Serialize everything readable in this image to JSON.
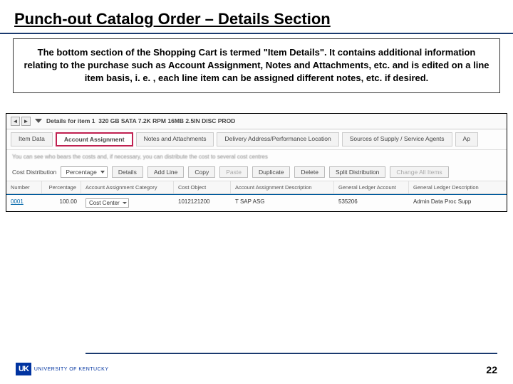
{
  "title": "Punch-out Catalog Order – Details Section",
  "description": "The bottom section of the Shopping Cart is termed \"Item Details\". It contains additional information relating to the purchase such as Account Assignment, Notes and Attachments, etc. and is edited on a line item basis, i. e. , each line item can be assigned different notes, etc. if desired.",
  "screenshot": {
    "details_label": "Details for item 1",
    "item_name": "320 GB SATA 7.2K RPM 16MB 2.5IN DISC PROD",
    "tabs": [
      "Item Data",
      "Account Assignment",
      "Notes and Attachments",
      "Delivery Address/Performance Location",
      "Sources of Supply / Service Agents",
      "Ap"
    ],
    "blur_text": "You can see who bears the costs and, if necessary, you can distribute the cost to several cost centres",
    "cost_dist_label": "Cost Distribution",
    "cost_dist_value": "Percentage",
    "actions": [
      "Details",
      "Add Line",
      "Copy",
      "Paste",
      "Duplicate",
      "Delete",
      "Split Distribution",
      "Change All Items"
    ],
    "columns": [
      "Number",
      "Percentage",
      "Account Assignment Category",
      "Cost Object",
      "Account Assignment Description",
      "General Ledger Account",
      "General Ledger Description"
    ],
    "row": {
      "number": "0001",
      "percentage": "100.00",
      "category": "Cost Center",
      "cost_object": "1012121200",
      "cost_object_suffix": "T  SAP   ASG",
      "gl_account": "535206",
      "gl_desc": "Admin Data Proc Supp"
    }
  },
  "logo_mark": "UK",
  "logo_text": "UNIVERSITY OF KENTUCKY",
  "page_number": "22"
}
